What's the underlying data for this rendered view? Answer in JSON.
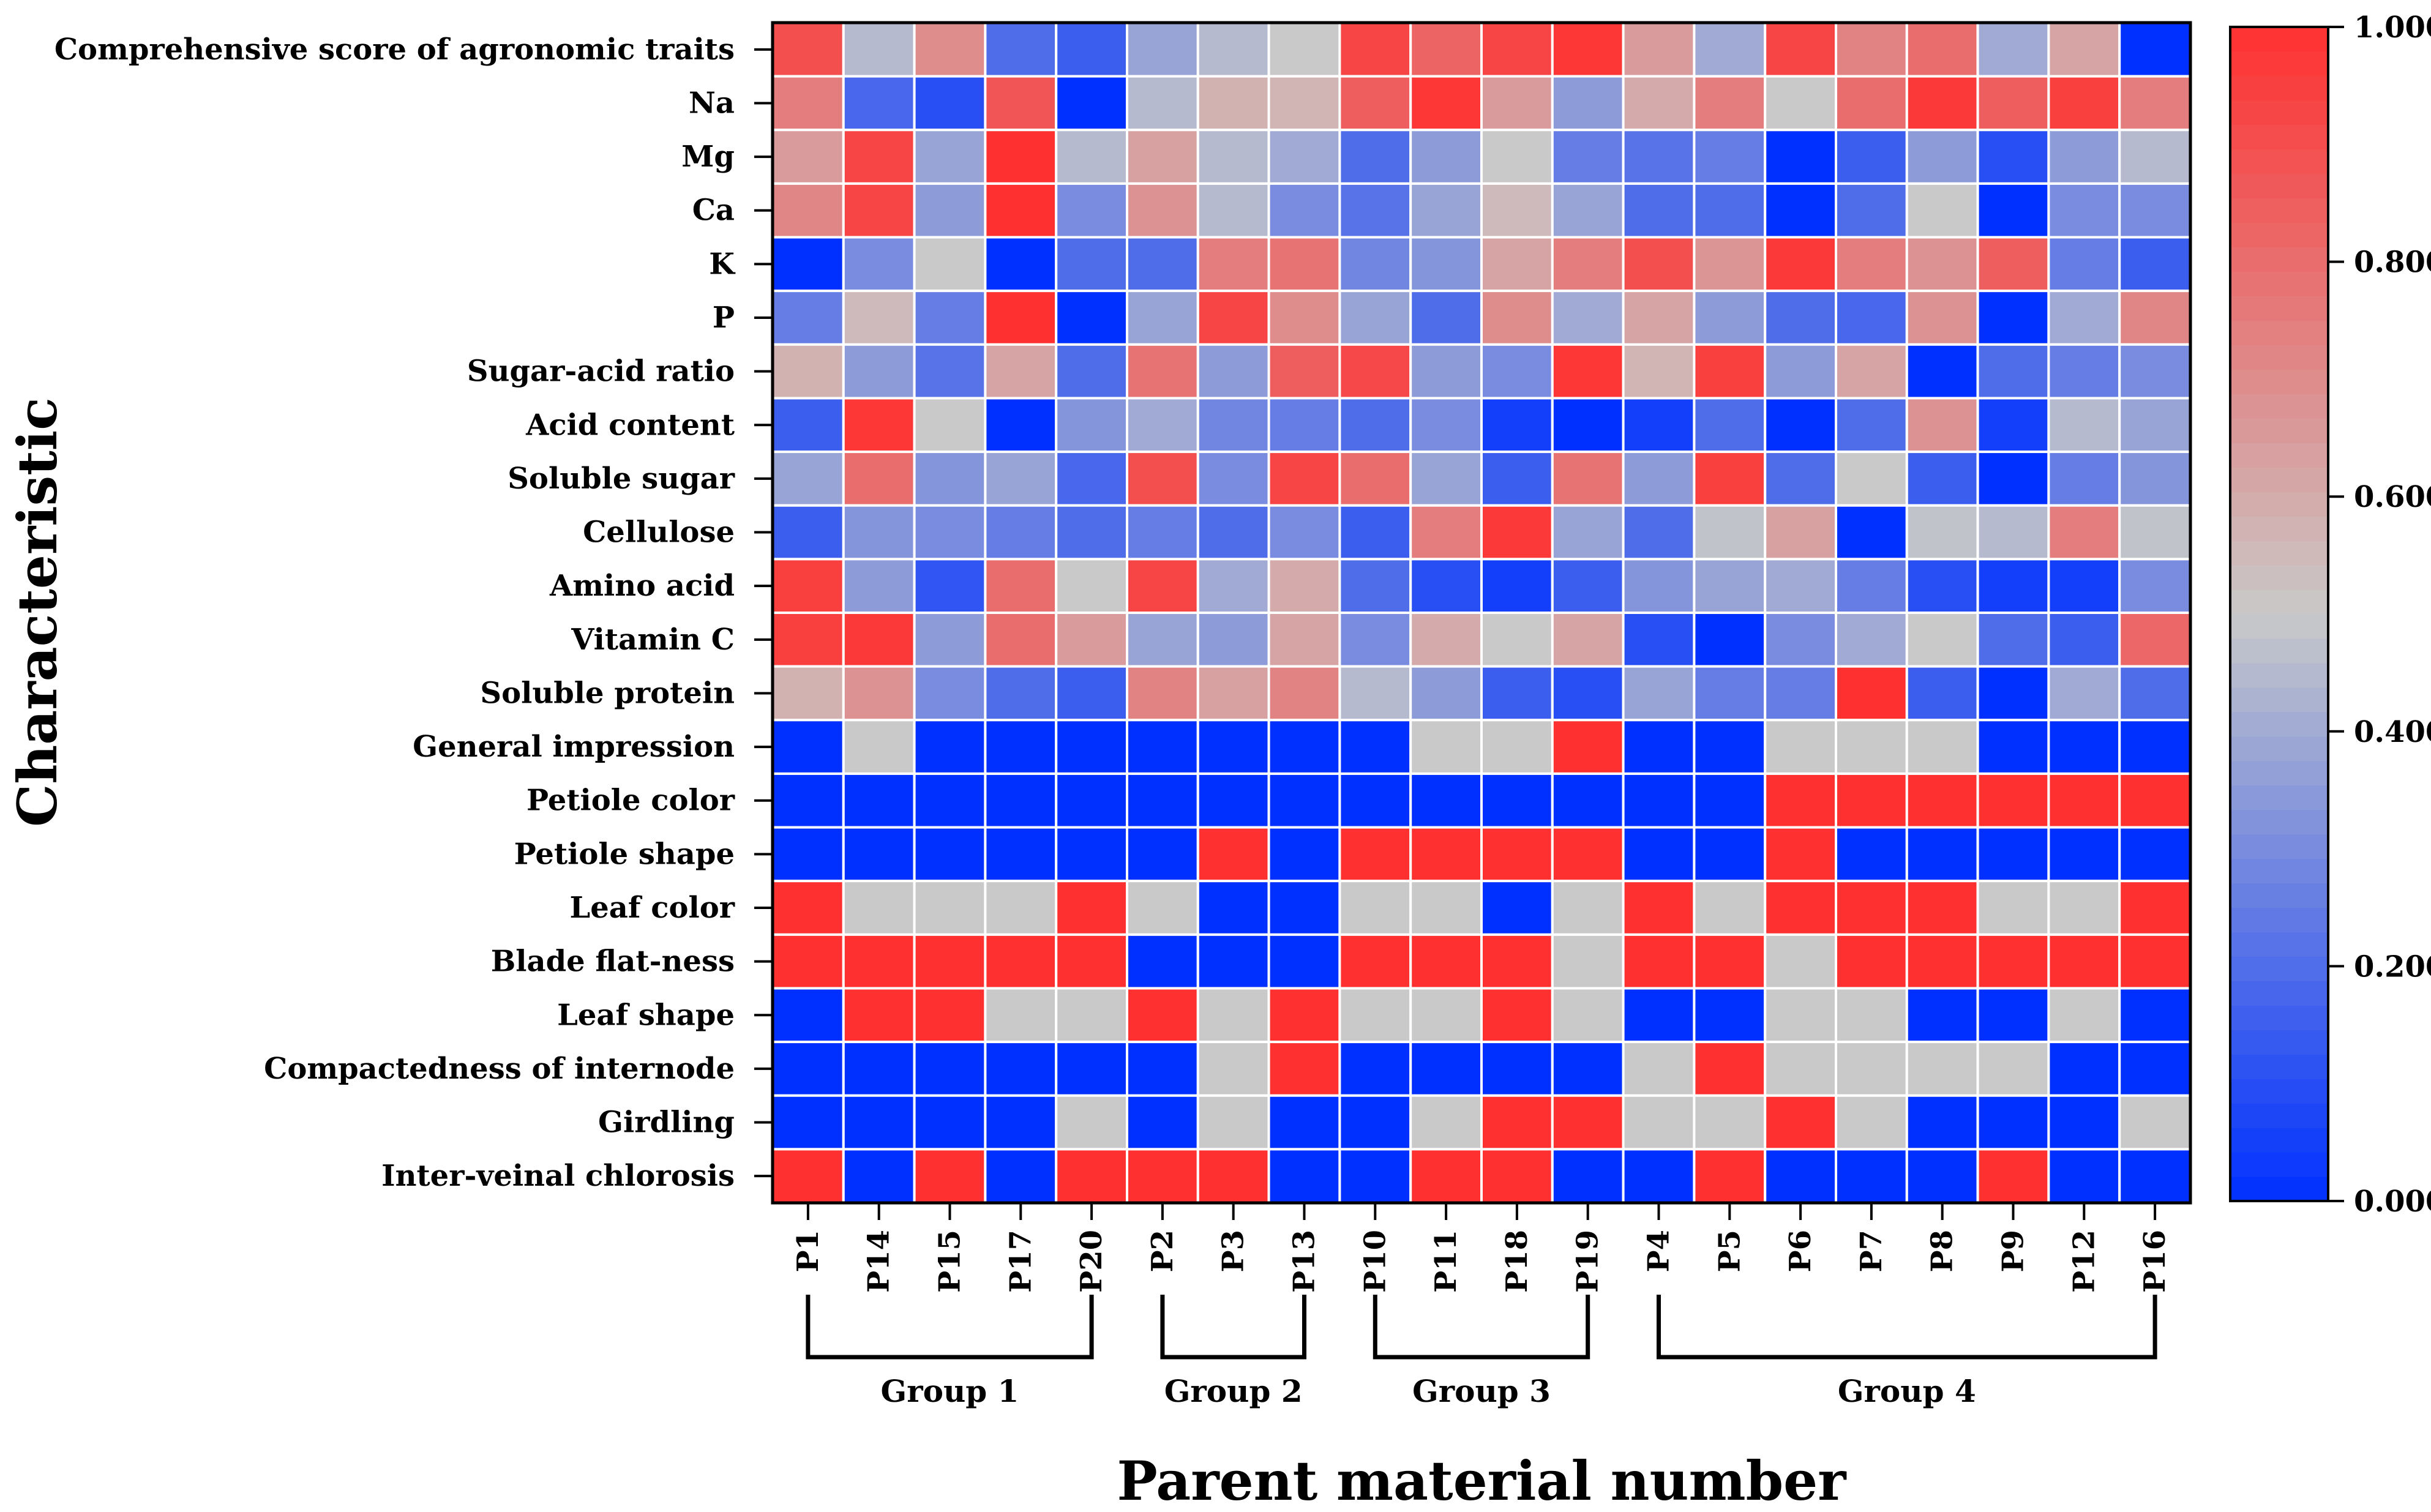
{
  "chart_data": {
    "type": "heatmap",
    "title": "",
    "xlabel": "Parent material number",
    "ylabel": "Characteristic",
    "columns": [
      "P1",
      "P14",
      "P15",
      "P17",
      "P20",
      "P2",
      "P3",
      "P13",
      "P10",
      "P11",
      "P18",
      "P19",
      "P4",
      "P5",
      "P6",
      "P7",
      "P8",
      "P9",
      "P12",
      "P16"
    ],
    "rows": [
      "Comprehensive score of agronomic traits",
      "Na",
      "Mg",
      "Ca",
      "K",
      "P",
      "Sugar-acid ratio",
      "Acid content",
      "Soluble sugar",
      "Cellulose",
      "Amino acid",
      "Vitamin C",
      "Soluble protein",
      "General impression",
      "Petiole color",
      "Petiole shape",
      "Leaf color",
      "Blade flat-ness",
      "Leaf shape",
      "Compactedness of internode",
      "Girdling",
      "Inter-veinal chlorosis"
    ],
    "values": [
      [
        0.9,
        0.45,
        0.7,
        0.2,
        0.15,
        0.38,
        0.45,
        0.5,
        0.93,
        0.83,
        0.93,
        0.98,
        0.65,
        0.4,
        0.93,
        0.73,
        0.8,
        0.4,
        0.62,
        0.0
      ],
      [
        0.75,
        0.18,
        0.1,
        0.88,
        0.0,
        0.45,
        0.58,
        0.57,
        0.85,
        0.98,
        0.65,
        0.35,
        0.6,
        0.75,
        0.5,
        0.8,
        0.97,
        0.85,
        0.95,
        0.75
      ],
      [
        0.65,
        0.93,
        0.38,
        1.0,
        0.45,
        0.63,
        0.45,
        0.4,
        0.2,
        0.35,
        0.5,
        0.25,
        0.22,
        0.25,
        0.0,
        0.15,
        0.35,
        0.1,
        0.35,
        0.45
      ],
      [
        0.72,
        0.93,
        0.35,
        1.0,
        0.3,
        0.68,
        0.45,
        0.3,
        0.22,
        0.38,
        0.55,
        0.38,
        0.2,
        0.2,
        0.0,
        0.2,
        0.5,
        0.0,
        0.3,
        0.3
      ],
      [
        0.0,
        0.3,
        0.5,
        0.0,
        0.2,
        0.2,
        0.75,
        0.78,
        0.28,
        0.33,
        0.62,
        0.75,
        0.9,
        0.67,
        0.97,
        0.75,
        0.68,
        0.85,
        0.25,
        0.15
      ],
      [
        0.25,
        0.55,
        0.25,
        1.0,
        0.0,
        0.38,
        0.93,
        0.7,
        0.38,
        0.2,
        0.7,
        0.4,
        0.62,
        0.35,
        0.2,
        0.18,
        0.68,
        0.0,
        0.4,
        0.72
      ],
      [
        0.58,
        0.35,
        0.22,
        0.62,
        0.2,
        0.78,
        0.35,
        0.85,
        0.92,
        0.35,
        0.3,
        0.98,
        0.57,
        0.95,
        0.35,
        0.62,
        0.0,
        0.2,
        0.25,
        0.3
      ],
      [
        0.15,
        0.98,
        0.5,
        0.0,
        0.33,
        0.4,
        0.28,
        0.25,
        0.2,
        0.3,
        0.05,
        0.0,
        0.05,
        0.2,
        0.0,
        0.2,
        0.68,
        0.05,
        0.45,
        0.38
      ],
      [
        0.38,
        0.8,
        0.33,
        0.38,
        0.18,
        0.9,
        0.3,
        0.93,
        0.8,
        0.38,
        0.15,
        0.78,
        0.35,
        0.95,
        0.2,
        0.5,
        0.15,
        0.0,
        0.25,
        0.33
      ],
      [
        0.15,
        0.33,
        0.3,
        0.25,
        0.2,
        0.25,
        0.2,
        0.3,
        0.15,
        0.75,
        0.97,
        0.38,
        0.2,
        0.48,
        0.63,
        0.0,
        0.48,
        0.45,
        0.75,
        0.48
      ],
      [
        0.95,
        0.35,
        0.12,
        0.8,
        0.5,
        0.93,
        0.4,
        0.6,
        0.2,
        0.1,
        0.05,
        0.15,
        0.33,
        0.38,
        0.4,
        0.25,
        0.1,
        0.05,
        0.05,
        0.3
      ],
      [
        0.95,
        0.97,
        0.35,
        0.8,
        0.65,
        0.38,
        0.35,
        0.62,
        0.3,
        0.6,
        0.5,
        0.62,
        0.1,
        0.0,
        0.3,
        0.4,
        0.5,
        0.2,
        0.15,
        0.82
      ],
      [
        0.58,
        0.68,
        0.3,
        0.2,
        0.15,
        0.73,
        0.63,
        0.73,
        0.45,
        0.35,
        0.15,
        0.1,
        0.38,
        0.25,
        0.25,
        1.0,
        0.15,
        0.0,
        0.4,
        0.2
      ],
      [
        0.0,
        0.5,
        0.0,
        0.0,
        0.0,
        0.0,
        0.0,
        0.0,
        0.0,
        0.5,
        0.5,
        1.0,
        0.0,
        0.0,
        0.5,
        0.5,
        0.5,
        0.0,
        0.0,
        0.0
      ],
      [
        0.0,
        0.0,
        0.0,
        0.0,
        0.0,
        0.0,
        0.0,
        0.0,
        0.0,
        0.0,
        0.0,
        0.0,
        0.0,
        0.0,
        1.0,
        1.0,
        1.0,
        1.0,
        1.0,
        1.0
      ],
      [
        0.0,
        0.0,
        0.0,
        0.0,
        0.0,
        0.0,
        1.0,
        0.0,
        1.0,
        1.0,
        1.0,
        1.0,
        0.0,
        0.0,
        1.0,
        0.0,
        0.0,
        0.0,
        0.0,
        0.0
      ],
      [
        1.0,
        0.5,
        0.5,
        0.5,
        1.0,
        0.5,
        0.0,
        0.0,
        0.5,
        0.5,
        0.0,
        0.5,
        1.0,
        0.5,
        1.0,
        1.0,
        1.0,
        0.5,
        0.5,
        1.0
      ],
      [
        1.0,
        1.0,
        1.0,
        1.0,
        1.0,
        0.0,
        0.0,
        0.0,
        1.0,
        1.0,
        1.0,
        0.5,
        1.0,
        1.0,
        0.5,
        1.0,
        1.0,
        1.0,
        1.0,
        1.0
      ],
      [
        0.0,
        1.0,
        1.0,
        0.5,
        0.5,
        1.0,
        0.5,
        1.0,
        0.5,
        0.5,
        1.0,
        0.5,
        0.0,
        0.0,
        0.5,
        0.5,
        0.0,
        0.0,
        0.5,
        0.0
      ],
      [
        0.0,
        0.0,
        0.0,
        0.0,
        0.0,
        0.0,
        0.5,
        1.0,
        0.0,
        0.0,
        0.0,
        0.0,
        0.5,
        1.0,
        0.5,
        0.5,
        0.5,
        0.5,
        0.0,
        0.0
      ],
      [
        0.0,
        0.0,
        0.0,
        0.0,
        0.5,
        0.0,
        0.5,
        0.0,
        0.0,
        0.5,
        1.0,
        1.0,
        0.5,
        0.5,
        1.0,
        0.5,
        0.0,
        0.0,
        0.0,
        0.5
      ],
      [
        1.0,
        0.0,
        1.0,
        0.0,
        1.0,
        1.0,
        1.0,
        0.0,
        0.0,
        1.0,
        1.0,
        0.0,
        0.0,
        1.0,
        0.0,
        0.0,
        0.0,
        1.0,
        0.0,
        0.0
      ]
    ],
    "groups": [
      {
        "label": "Group 1",
        "start": 0,
        "end": 4
      },
      {
        "label": "Group 2",
        "start": 5,
        "end": 7
      },
      {
        "label": "Group 3",
        "start": 8,
        "end": 11
      },
      {
        "label": "Group 4",
        "start": 12,
        "end": 19
      }
    ],
    "colorbar": {
      "range": [
        0,
        1
      ],
      "ticks": [
        "0.000",
        "0.2000",
        "0.4000",
        "0.6000",
        "0.8000",
        "1.000"
      ],
      "tick_values": [
        0,
        0.2,
        0.4,
        0.6,
        0.8,
        1.0
      ],
      "low_color": "#0030ff",
      "mid_color": "#c9c9c9",
      "high_color": "#ff3030"
    }
  }
}
